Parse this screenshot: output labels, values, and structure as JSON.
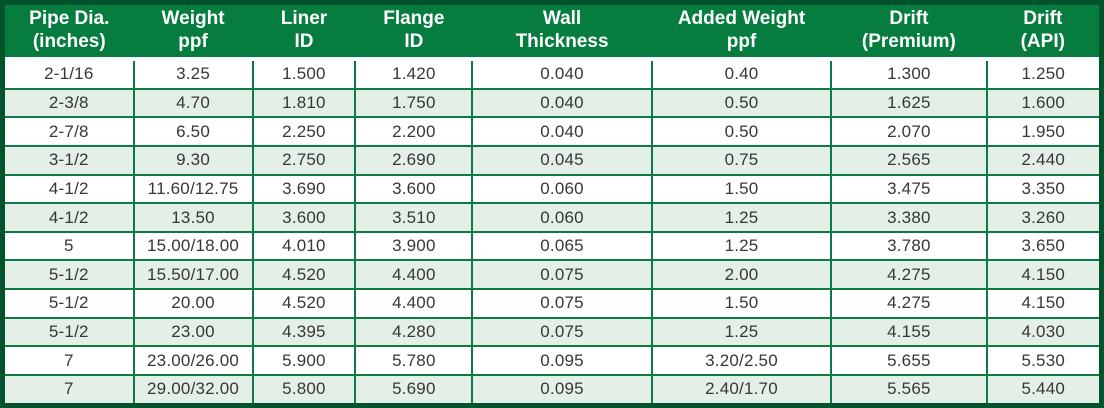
{
  "colors": {
    "header_green": "#067d3f",
    "grid_green": "#0b7a45",
    "outer_border_green": "#01532b",
    "alt_row_green": "#e4efe7",
    "row_white": "#ffffff",
    "header_text": "#ffffff",
    "cell_text": "#373737"
  },
  "table": {
    "columns": [
      {
        "line1": "Pipe Dia.",
        "line2": "(inches)"
      },
      {
        "line1": "Weight",
        "line2": "ppf"
      },
      {
        "line1": "Liner",
        "line2": "ID"
      },
      {
        "line1": "Flange",
        "line2": "ID"
      },
      {
        "line1": "Wall",
        "line2": "Thickness"
      },
      {
        "line1": "Added Weight",
        "line2": "ppf"
      },
      {
        "line1": "Drift",
        "line2": "(Premium)"
      },
      {
        "line1": "Drift",
        "line2": "(API)"
      }
    ]
  },
  "chart_data": {
    "type": "table",
    "title": "",
    "columns": [
      "Pipe Dia. (inches)",
      "Weight ppf",
      "Liner ID",
      "Flange ID",
      "Wall Thickness",
      "Added Weight ppf",
      "Drift (Premium)",
      "Drift (API)"
    ],
    "rows": [
      [
        "2-1/16",
        "3.25",
        "1.500",
        "1.420",
        "0.040",
        "0.40",
        "1.300",
        "1.250"
      ],
      [
        "2-3/8",
        "4.70",
        "1.810",
        "1.750",
        "0.040",
        "0.50",
        "1.625",
        "1.600"
      ],
      [
        "2-7/8",
        "6.50",
        "2.250",
        "2.200",
        "0.040",
        "0.50",
        "2.070",
        "1.950"
      ],
      [
        "3-1/2",
        "9.30",
        "2.750",
        "2.690",
        "0.045",
        "0.75",
        "2.565",
        "2.440"
      ],
      [
        "4-1/2",
        "11.60/12.75",
        "3.690",
        "3.600",
        "0.060",
        "1.50",
        "3.475",
        "3.350"
      ],
      [
        "4-1/2",
        "13.50",
        "3.600",
        "3.510",
        "0.060",
        "1.25",
        "3.380",
        "3.260"
      ],
      [
        "5",
        "15.00/18.00",
        "4.010",
        "3.900",
        "0.065",
        "1.25",
        "3.780",
        "3.650"
      ],
      [
        "5-1/2",
        "15.50/17.00",
        "4.520",
        "4.400",
        "0.075",
        "2.00",
        "4.275",
        "4.150"
      ],
      [
        "5-1/2",
        "20.00",
        "4.520",
        "4.400",
        "0.075",
        "1.50",
        "4.275",
        "4.150"
      ],
      [
        "5-1/2",
        "23.00",
        "4.395",
        "4.280",
        "0.075",
        "1.25",
        "4.155",
        "4.030"
      ],
      [
        "7",
        "23.00/26.00",
        "5.900",
        "5.780",
        "0.095",
        "3.20/2.50",
        "5.655",
        "5.530"
      ],
      [
        "7",
        "29.00/32.00",
        "5.800",
        "5.690",
        "0.095",
        "2.40/1.70",
        "5.565",
        "5.440"
      ]
    ]
  }
}
